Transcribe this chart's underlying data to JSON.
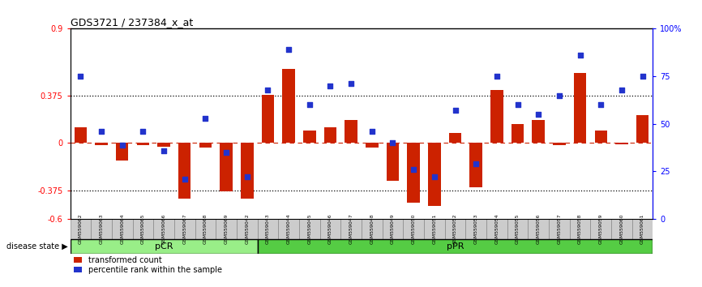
{
  "title": "GDS3721 / 237384_x_at",
  "samples": [
    "GSM559062",
    "GSM559063",
    "GSM559064",
    "GSM559065",
    "GSM559066",
    "GSM559067",
    "GSM559068",
    "GSM559069",
    "GSM559042",
    "GSM559043",
    "GSM559044",
    "GSM559045",
    "GSM559046",
    "GSM559047",
    "GSM559048",
    "GSM559049",
    "GSM559050",
    "GSM559051",
    "GSM559052",
    "GSM559053",
    "GSM559054",
    "GSM559055",
    "GSM559056",
    "GSM559057",
    "GSM559058",
    "GSM559059",
    "GSM559060",
    "GSM559061"
  ],
  "red_bars": [
    0.12,
    -0.02,
    -0.14,
    -0.02,
    -0.03,
    -0.44,
    -0.04,
    -0.38,
    -0.44,
    0.38,
    0.58,
    0.1,
    0.12,
    0.18,
    -0.04,
    -0.3,
    -0.47,
    -0.5,
    0.08,
    -0.35,
    0.42,
    0.15,
    0.18,
    -0.02,
    0.55,
    0.1,
    -0.01,
    0.22
  ],
  "blue_squares": [
    75,
    46,
    39,
    46,
    36,
    21,
    53,
    35,
    22,
    68,
    89,
    60,
    70,
    71,
    46,
    40,
    26,
    22,
    57,
    29,
    75,
    60,
    55,
    65,
    86,
    60,
    68,
    75
  ],
  "pCR_count": 9,
  "pPR_count": 19,
  "ylim_left": [
    -0.6,
    0.9
  ],
  "ylim_right": [
    0,
    100
  ],
  "yticks_left": [
    -0.6,
    -0.375,
    0.0,
    0.375,
    0.9
  ],
  "ytick_labels_left": [
    "-0.6",
    "-0.375",
    "0",
    "0.375",
    "0.9"
  ],
  "yticks_right": [
    0,
    25,
    50,
    75,
    100
  ],
  "ytick_labels_right": [
    "0",
    "25",
    "50",
    "75",
    "100%"
  ],
  "hlines": [
    -0.375,
    0.375
  ],
  "red_bar_color": "#cc2200",
  "blue_sq_color": "#2233cc",
  "dashed_color": "#cc2200",
  "dotted_color": "#000000",
  "pCR_color": "#99ee88",
  "pPR_color": "#55cc44",
  "bg_color": "#ffffff",
  "tick_label_bg": "#cccccc",
  "legend_red": "transformed count",
  "legend_blue": "percentile rank within the sample",
  "disease_state_label": "disease state"
}
